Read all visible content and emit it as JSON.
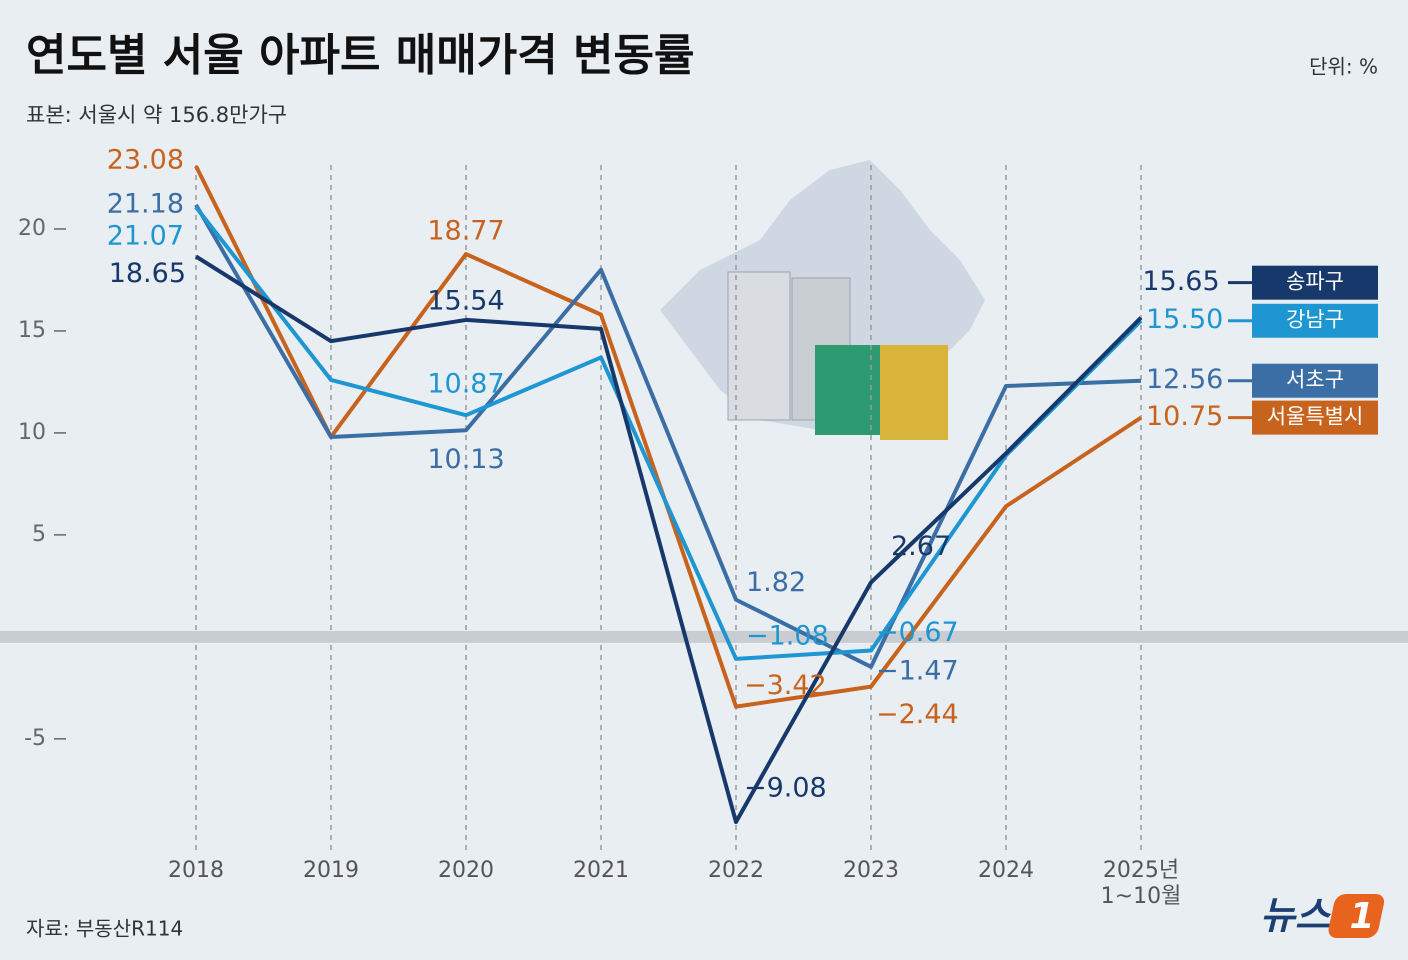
{
  "chart_data": {
    "type": "line",
    "title": "연도별 서울 아파트 매매가격 변동률",
    "subtitle": "표본: 서울시 약 156.8만가구",
    "unit": "단위: %",
    "source": "자료: 부동산R114",
    "logo_text": "뉴스",
    "logo_badge": "1",
    "categories": [
      "2018",
      "2019",
      "2020",
      "2021",
      "2022",
      "2023",
      "2024",
      "2025년\n1~10월"
    ],
    "ylim": [
      -10.5,
      25
    ],
    "yticks": [
      -5,
      5,
      10,
      15,
      20
    ],
    "series": [
      {
        "name": "송파구",
        "color": "#17386b",
        "values": [
          18.65,
          14.5,
          15.54,
          15.1,
          -9.08,
          2.67,
          9.0,
          15.65
        ],
        "value_labels": [
          "18.65",
          null,
          "15.54",
          null,
          "−9.08",
          "2.67",
          null,
          "15.65"
        ]
      },
      {
        "name": "강남구",
        "color": "#1e96d2",
        "values": [
          21.07,
          12.6,
          10.87,
          13.7,
          -1.08,
          -0.67,
          8.9,
          15.5
        ],
        "value_labels": [
          "21.07",
          null,
          "10.87",
          null,
          "−1.08",
          "−0.67",
          null,
          "15.50"
        ]
      },
      {
        "name": "서초구",
        "color": "#3b6ea5",
        "values": [
          21.18,
          9.8,
          10.13,
          18.0,
          1.82,
          -1.47,
          12.3,
          12.56
        ],
        "value_labels": [
          "21.18",
          null,
          "10.13",
          null,
          "1.82",
          "−1.47",
          null,
          "12.56"
        ]
      },
      {
        "name": "서울특별시",
        "color": "#c8631e",
        "values": [
          23.08,
          9.8,
          18.77,
          15.8,
          -3.42,
          -2.44,
          6.4,
          10.75
        ],
        "value_labels": [
          "23.08",
          null,
          "18.77",
          null,
          "−3.42",
          "−2.44",
          null,
          "10.75"
        ]
      }
    ]
  }
}
